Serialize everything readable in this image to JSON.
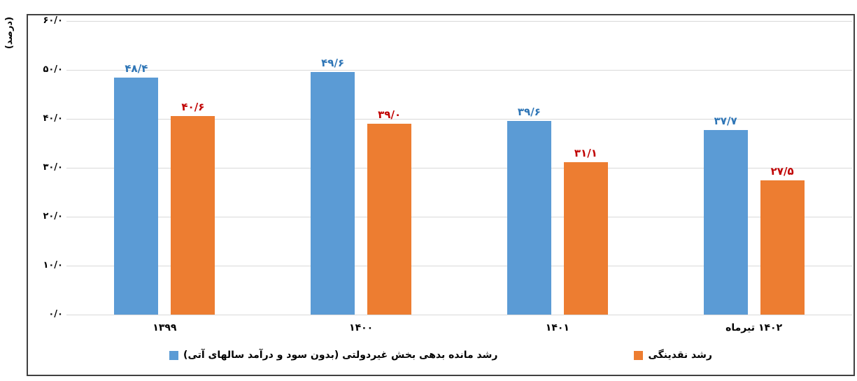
{
  "chart_data": {
    "type": "bar",
    "title": "",
    "ylabel": "(درصد)",
    "categories": [
      "۱۳۹۹",
      "۱۴۰۰",
      "۱۴۰۱",
      "تیرماه ۱۴۰۲"
    ],
    "series": [
      {
        "name": "رشد مانده بدهی بخش غیردولتی (بدون سود و درآمد سالهای آتی)",
        "color": "#5B9BD5",
        "data_label_color": "#2E75B6",
        "values": [
          48.4,
          49.6,
          39.6,
          37.7
        ],
        "value_labels": [
          "۴۸/۴",
          "۴۹/۶",
          "۳۹/۶",
          "۳۷/۷"
        ]
      },
      {
        "name": "رشد نقدینگی",
        "color": "#ED7D31",
        "data_label_color": "#C00000",
        "values": [
          40.6,
          39.0,
          31.1,
          27.5
        ],
        "value_labels": [
          "۴۰/۶",
          "۳۹/۰",
          "۳۱/۱",
          "۲۷/۵"
        ]
      }
    ],
    "y_axis": {
      "min": 0,
      "max": 60,
      "step": 10,
      "tick_values": [
        60,
        50,
        40,
        30,
        20,
        10,
        0
      ],
      "tick_labels": [
        "۶۰/۰",
        "۵۰/۰",
        "۴۰/۰",
        "۳۰/۰",
        "۲۰/۰",
        "۱۰/۰",
        "۰/۰"
      ]
    },
    "grid": true,
    "legend_position": "bottom",
    "colors": {
      "grid": "#D9D9D9",
      "frame": "#404040",
      "axis_text": "#000000"
    }
  }
}
